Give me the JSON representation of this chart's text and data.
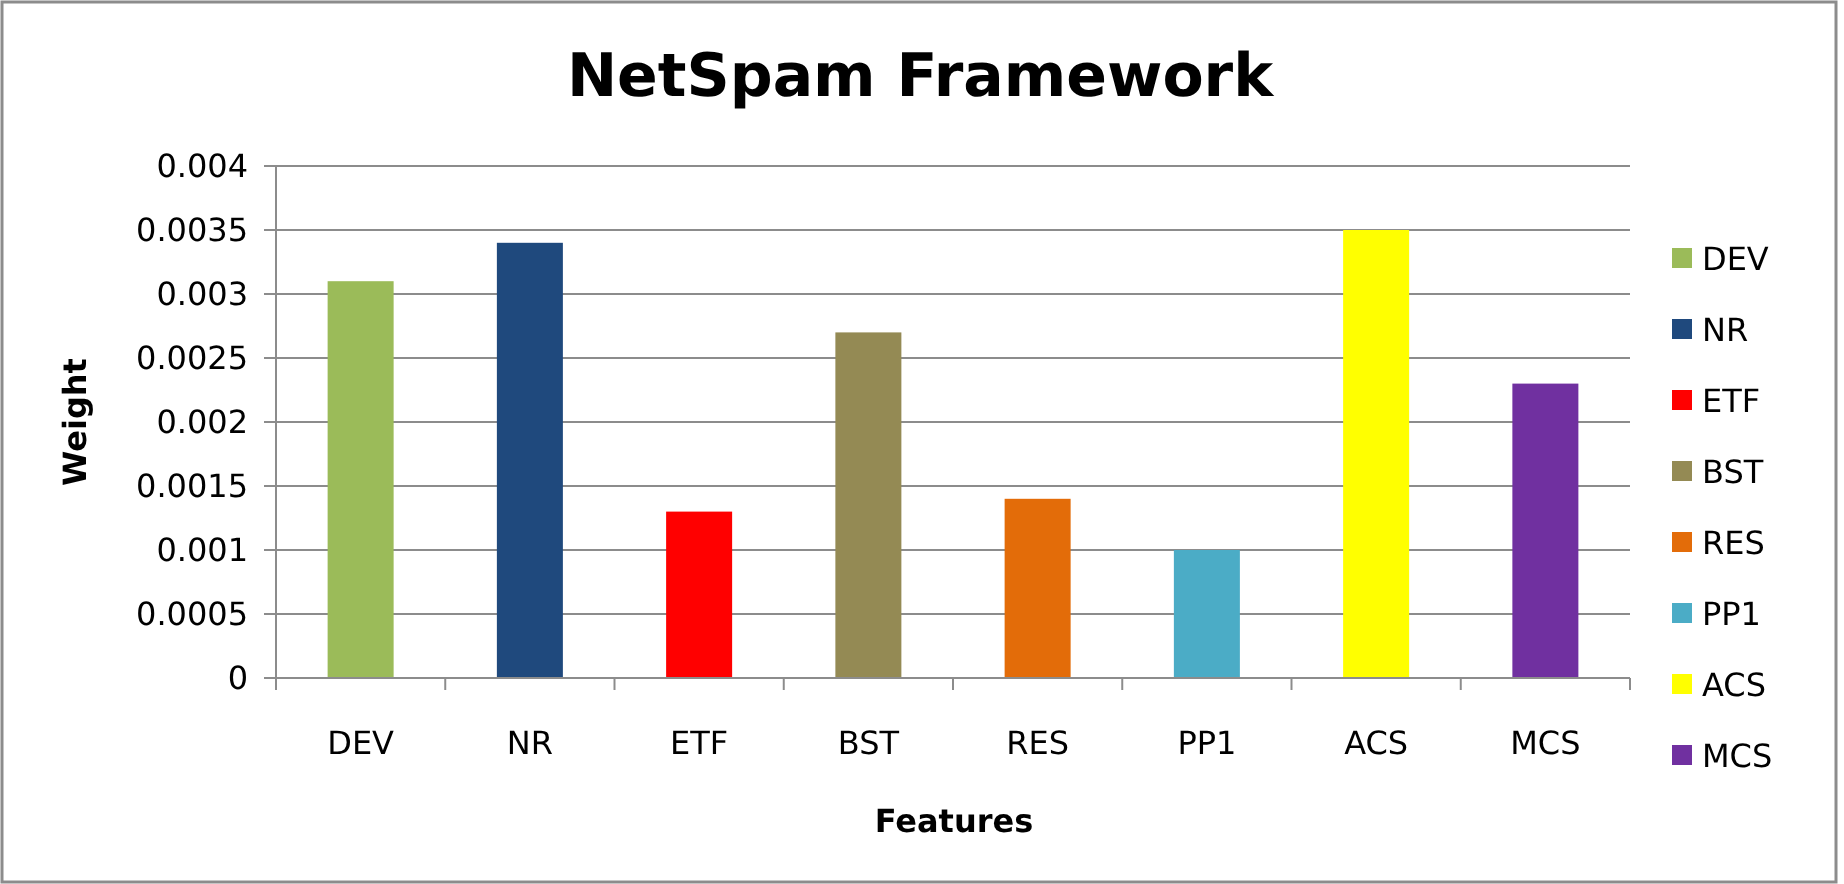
{
  "chart_data": {
    "type": "bar",
    "title": "NetSpam Framework",
    "xlabel": "Features",
    "ylabel": "Weight",
    "categories": [
      "DEV",
      "NR",
      "ETF",
      "BST",
      "RES",
      "PP1",
      "ACS",
      "MCS"
    ],
    "stacked": true,
    "series": [
      {
        "name": "DEV",
        "color": "#9bbb59",
        "values": [
          0.0031,
          null,
          null,
          null,
          null,
          null,
          null,
          null
        ]
      },
      {
        "name": "NR",
        "color": "#1f497d",
        "values": [
          null,
          0.0034,
          null,
          null,
          null,
          null,
          null,
          null
        ]
      },
      {
        "name": "ETF",
        "color": "#ff0000",
        "values": [
          null,
          null,
          0.0013,
          null,
          null,
          null,
          null,
          null
        ]
      },
      {
        "name": "BST",
        "color": "#948a54",
        "values": [
          null,
          null,
          null,
          0.0027,
          null,
          null,
          null,
          null
        ]
      },
      {
        "name": "RES",
        "color": "#e36c09",
        "values": [
          null,
          null,
          null,
          null,
          0.0014,
          null,
          null,
          null
        ]
      },
      {
        "name": "PP1",
        "color": "#4bacc6",
        "values": [
          null,
          null,
          null,
          null,
          null,
          0.001,
          null,
          null
        ]
      },
      {
        "name": "ACS",
        "color": "#ffff00",
        "values": [
          null,
          null,
          null,
          null,
          null,
          null,
          0.0035,
          null
        ]
      },
      {
        "name": "MCS",
        "color": "#7030a0",
        "values": [
          null,
          null,
          null,
          null,
          null,
          null,
          null,
          0.0023
        ]
      }
    ],
    "ylim": [
      0,
      0.004
    ],
    "yticks": [
      0,
      0.0005,
      0.001,
      0.0015,
      0.002,
      0.0025,
      0.003,
      0.0035,
      0.004
    ],
    "grid": "y",
    "legend": "right"
  }
}
